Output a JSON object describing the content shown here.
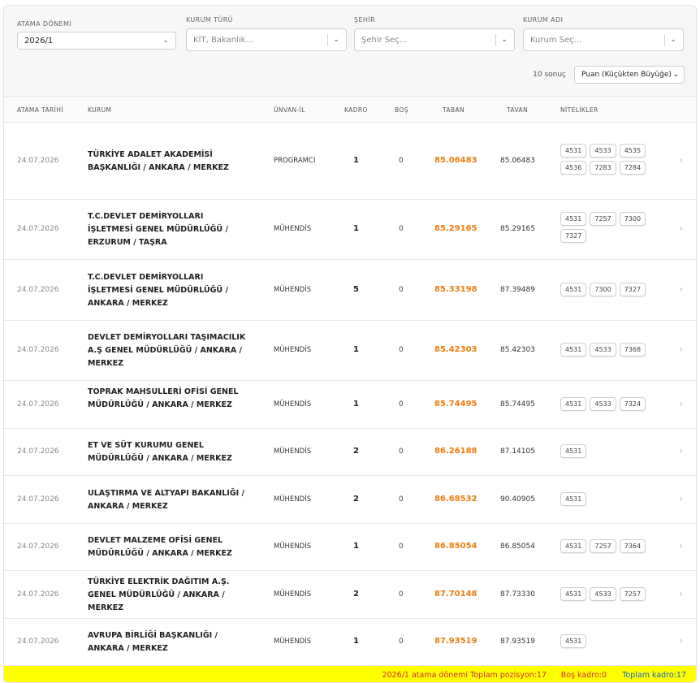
{
  "filters": {
    "donem": {
      "label": "ATAMA DÖNEMİ",
      "value": "2026/1"
    },
    "turu": {
      "label": "KURUM TÜRÜ",
      "placeholder": "KİT, Bakanlık..."
    },
    "sehir": {
      "label": "ŞEHİR",
      "placeholder": "Şehir Seç..."
    },
    "ad": {
      "label": "KURUM ADI",
      "placeholder": "Kurum Seç..."
    }
  },
  "sort": {
    "count": "10 sonuç",
    "value": "Puan (Küçükten Büyüğe)"
  },
  "headers": {
    "tarih": "ATAMA TARİHİ",
    "kurum": "KURUM",
    "unvan": "ÜNVAN-İL",
    "kadro": "KADRO",
    "bos": "BOŞ",
    "taban": "TABAN",
    "tavan": "TAVAN",
    "nitelik": "NİTELİKLER"
  },
  "rows": [
    {
      "date": "24.07.2026",
      "kurum": "TÜRKİYE ADALET AKADEMİSİ BAŞKANLIĞI / ANKARA / MERKEZ",
      "unvan": "PROGRAMCI",
      "kadro": "1",
      "bos": "0",
      "taban": "85.06483",
      "tavan": "85.06483",
      "tags": [
        "4531",
        "4533",
        "4535",
        "4536",
        "7283",
        "7284"
      ]
    },
    {
      "date": "24.07.2026",
      "kurum": "T.C.DEVLET DEMİRYOLLARI İŞLETMESİ GENEL MÜDÜRLÜĞÜ / ERZURUM / TAŞRA",
      "unvan": "MÜHENDİS",
      "kadro": "1",
      "bos": "0",
      "taban": "85.29165",
      "tavan": "85.29165",
      "tags": [
        "4531",
        "7257",
        "7300",
        "7327"
      ]
    },
    {
      "date": "24.07.2026",
      "kurum": "T.C.DEVLET DEMİRYOLLARI İŞLETMESİ GENEL MÜDÜRLÜĞÜ / ANKARA / MERKEZ",
      "unvan": "MÜHENDİS",
      "kadro": "5",
      "bos": "0",
      "taban": "85.33198",
      "tavan": "87.39489",
      "tags": [
        "4531",
        "7300",
        "7327"
      ]
    },
    {
      "date": "24.07.2026",
      "kurum": "DEVLET DEMİRYOLLARI TAŞIMACILIK A.Ş GENEL MÜDÜRLÜĞÜ / ANKARA / MERKEZ",
      "unvan": "MÜHENDİS",
      "kadro": "1",
      "bos": "0",
      "taban": "85.42303",
      "tavan": "85.42303",
      "tags": [
        "4531",
        "4533",
        "7368"
      ]
    },
    {
      "date": "24.07.2026",
      "kurum": "TOPRAK MAHSULLERİ OFİSİ GENEL MÜDÜRLÜĞÜ / ANKARA / MERKEZ",
      "unvan": "MÜHENDİS",
      "kadro": "1",
      "bos": "0",
      "taban": "85.74495",
      "tavan": "85.74495",
      "tags": [
        "4531",
        "4533",
        "7324"
      ]
    },
    {
      "date": "24.07.2026",
      "kurum": "ET VE SÜT KURUMU GENEL MÜDÜRLÜĞÜ / ANKARA / MERKEZ",
      "unvan": "MÜHENDİS",
      "kadro": "2",
      "bos": "0",
      "taban": "86.26188",
      "tavan": "87.14105",
      "tags": [
        "4531"
      ]
    },
    {
      "date": "24.07.2026",
      "kurum": "ULAŞTIRMA VE ALTYAPI BAKANLIĞI / ANKARA / MERKEZ",
      "unvan": "MÜHENDİS",
      "kadro": "2",
      "bos": "0",
      "taban": "86.68532",
      "tavan": "90.40905",
      "tags": [
        "4531"
      ]
    },
    {
      "date": "24.07.2026",
      "kurum": "DEVLET MALZEME OFİSİ GENEL MÜDÜRLÜĞÜ / ANKARA / MERKEZ",
      "unvan": "MÜHENDİS",
      "kadro": "1",
      "bos": "0",
      "taban": "86.85054",
      "tavan": "86.85054",
      "tags": [
        "4531",
        "7257",
        "7364"
      ]
    },
    {
      "date": "24.07.2026",
      "kurum": "TÜRKİYE ELEKTRİK DAĞITIM A.Ş. GENEL MÜDÜRLÜĞÜ / ANKARA / MERKEZ",
      "unvan": "MÜHENDİS",
      "kadro": "2",
      "bos": "0",
      "taban": "87.70148",
      "tavan": "87.73330",
      "tags": [
        "4531",
        "4533",
        "7257"
      ]
    },
    {
      "date": "24.07.2026",
      "kurum": "AVRUPA BİRLİĞİ BAŞKANLIĞI / ANKARA / MERKEZ",
      "unvan": "MÜHENDİS",
      "kadro": "1",
      "bos": "0",
      "taban": "87.93519",
      "tavan": "87.93519",
      "tags": [
        "4531"
      ]
    }
  ],
  "footer": {
    "toplam": "2026/1 atama dönemi Toplam pozisyon:17",
    "bos": "Boş kadro:0",
    "kadro": "Toplam kadro:17"
  }
}
